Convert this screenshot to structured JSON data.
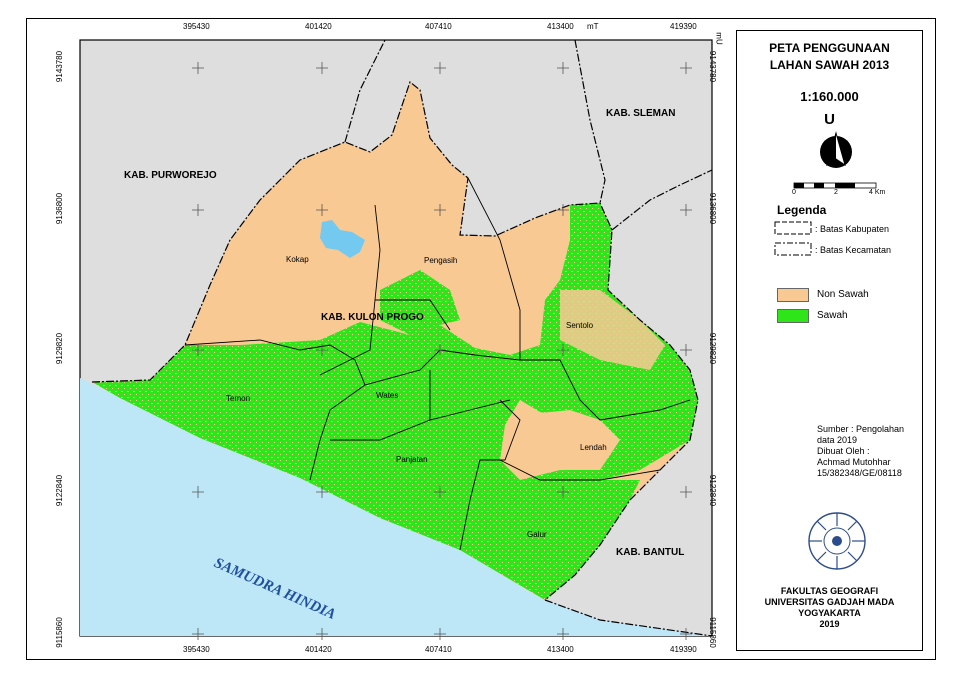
{
  "map": {
    "title_line1": "PETA PENGGUNAAN",
    "title_line2": "LAHAN SAWAH 2013",
    "scale": "1:160.000",
    "north_label": "U",
    "scalebar": {
      "ticks": [
        "0",
        "2",
        "4 Km"
      ]
    },
    "legend_title": "Legenda",
    "legend_lines": [
      {
        "label": ": Batas Kabupaten"
      },
      {
        "label": ": Batas Kecamatan"
      }
    ],
    "legend_fills": [
      {
        "label": "Non Sawah",
        "color": "#f9c994"
      },
      {
        "label": "Sawah",
        "color": "#2ee51a"
      }
    ],
    "source": [
      "Sumber : Pengolahan",
      "data 2019",
      "Dibuat Oleh :",
      "Achmad Mutohhar",
      "15/382348/GE/08118"
    ],
    "institution": [
      "FAKULTAS GEOGRAFI",
      "UNIVERSITAS GADJAH MADA",
      "YOGYAKARTA",
      "2019"
    ],
    "x_ticks": [
      "395430",
      "401420",
      "407410",
      "413400",
      "419390"
    ],
    "x_unit": "mT",
    "y_ticks": [
      "9143780",
      "9136800",
      "9129820",
      "9122840",
      "9115860"
    ],
    "y_unit": "mU",
    "regions": [
      "KAB. PURWOREJO",
      "KAB. SLEMAN",
      "KAB. KULON PROGO",
      "KAB. BANTUL"
    ],
    "sea": "SAMUDRA HINDIA",
    "districts": [
      "Kokap",
      "Pengasih",
      "Sentolo",
      "Temon",
      "Wates",
      "Panjatan",
      "Lendah",
      "Galur"
    ],
    "colors": {
      "sea": "#bde6f7",
      "neighbor": "#dedede",
      "non_sawah": "#f9c994",
      "sawah": "#2ee51a",
      "lake": "#73c9f0"
    }
  }
}
